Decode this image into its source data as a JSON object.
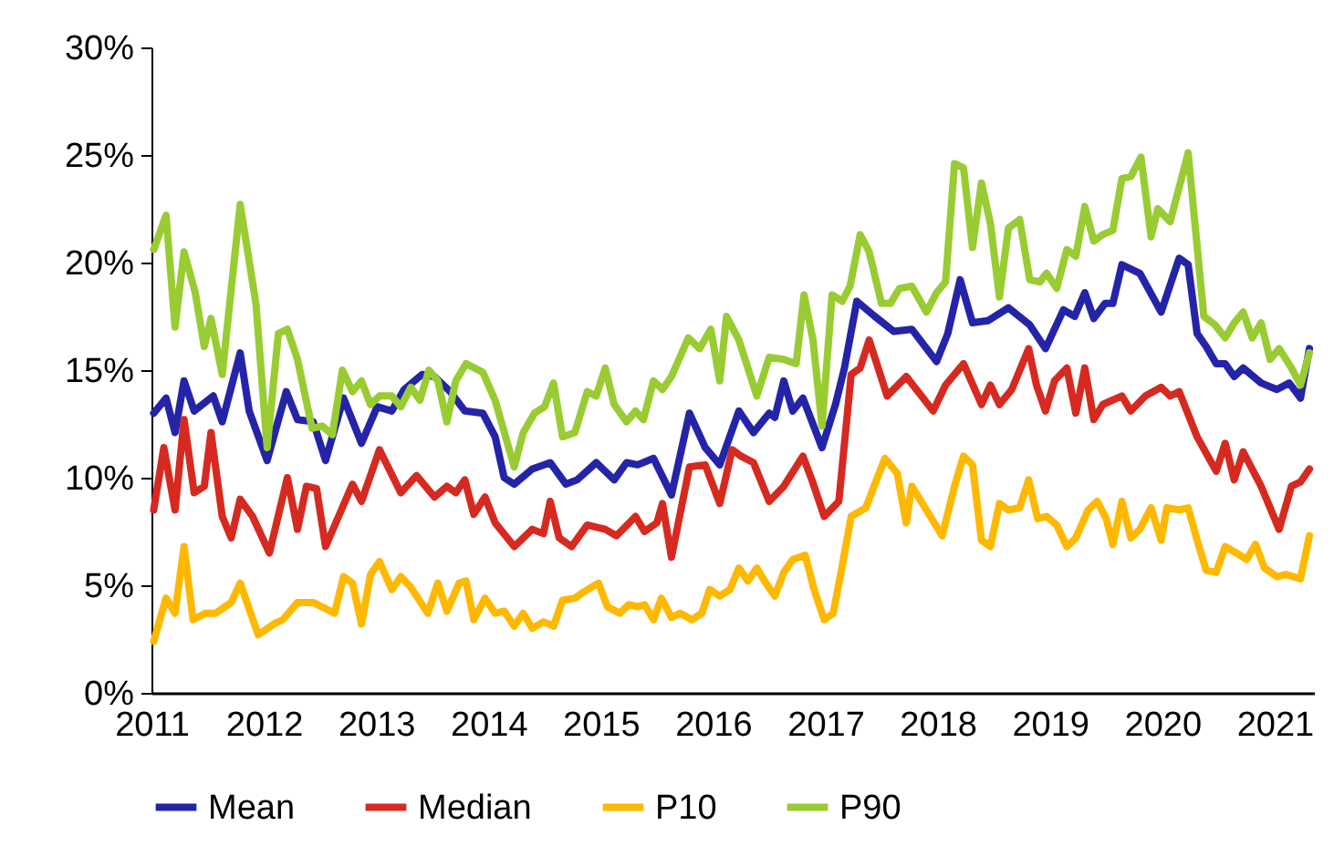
{
  "chart_data": {
    "type": "line",
    "xlim": [
      2011,
      2021.35
    ],
    "xticks": [
      2011,
      2012,
      2013,
      2014,
      2015,
      2016,
      2017,
      2018,
      2019,
      2020,
      2021
    ],
    "ylim": [
      0,
      30
    ],
    "yticks": [
      {
        "value": 0,
        "label": "0%"
      },
      {
        "value": 5,
        "label": "5%"
      },
      {
        "value": 10,
        "label": "10%"
      },
      {
        "value": 15,
        "label": "15%"
      },
      {
        "value": 20,
        "label": "20%"
      },
      {
        "value": 25,
        "label": "25%"
      },
      {
        "value": 30,
        "label": "30%"
      }
    ],
    "legend": "bottom",
    "grid": false,
    "series": [
      {
        "name": "Mean",
        "color": "#2424a8",
        "x": [
          2011.02,
          2011.13,
          2011.21,
          2011.29,
          2011.38,
          2011.55,
          2011.63,
          2011.79,
          2011.87,
          2012.03,
          2012.2,
          2012.3,
          2012.44,
          2012.55,
          2012.71,
          2012.87,
          2013.01,
          2013.14,
          2013.25,
          2013.41,
          2013.52,
          2013.66,
          2013.79,
          2013.95,
          2014.06,
          2014.14,
          2014.23,
          2014.39,
          2014.55,
          2014.69,
          2014.79,
          2014.96,
          2015.12,
          2015.23,
          2015.33,
          2015.47,
          2015.63,
          2015.79,
          2015.93,
          2016.06,
          2016.23,
          2016.36,
          2016.5,
          2016.55,
          2016.63,
          2016.71,
          2016.8,
          2016.97,
          2017.09,
          2017.17,
          2017.28,
          2017.44,
          2017.61,
          2017.77,
          2017.99,
          2018.09,
          2018.2,
          2018.31,
          2018.45,
          2018.63,
          2018.82,
          2018.96,
          2019.12,
          2019.22,
          2019.31,
          2019.39,
          2019.49,
          2019.56,
          2019.64,
          2019.8,
          2019.99,
          2020.15,
          2020.23,
          2020.31,
          2020.39,
          2020.48,
          2020.56,
          2020.64,
          2020.72,
          2020.88,
          2021.02,
          2021.13,
          2021.23,
          2021.31
        ],
        "values": [
          13.0,
          13.7,
          12.1,
          14.5,
          13.1,
          13.8,
          12.6,
          15.8,
          13.1,
          10.8,
          14.0,
          12.7,
          12.6,
          10.8,
          13.7,
          11.6,
          13.3,
          13.1,
          14.1,
          14.8,
          14.7,
          14.0,
          13.1,
          13.0,
          11.9,
          10.0,
          9.7,
          10.4,
          10.7,
          9.7,
          9.9,
          10.7,
          9.9,
          10.7,
          10.6,
          10.9,
          9.2,
          13.0,
          11.4,
          10.6,
          13.1,
          12.1,
          13.0,
          12.8,
          14.5,
          13.1,
          13.7,
          11.4,
          13.4,
          15.1,
          18.2,
          17.5,
          16.8,
          16.9,
          15.4,
          16.7,
          19.2,
          17.2,
          17.3,
          17.9,
          17.1,
          16.0,
          17.8,
          17.5,
          18.6,
          17.4,
          18.1,
          18.1,
          19.9,
          19.5,
          17.7,
          20.2,
          19.9,
          16.7,
          16.1,
          15.3,
          15.3,
          14.7,
          15.1,
          14.4,
          14.1,
          14.4,
          13.7,
          16.0
        ]
      },
      {
        "name": "Median",
        "color": "#d62a20",
        "x": [
          2011.02,
          2011.11,
          2011.21,
          2011.29,
          2011.38,
          2011.47,
          2011.53,
          2011.63,
          2011.71,
          2011.79,
          2011.9,
          2012.05,
          2012.21,
          2012.3,
          2012.38,
          2012.47,
          2012.55,
          2012.79,
          2012.87,
          2013.03,
          2013.22,
          2013.36,
          2013.52,
          2013.63,
          2013.71,
          2013.79,
          2013.87,
          2013.97,
          2014.06,
          2014.23,
          2014.39,
          2014.49,
          2014.55,
          2014.63,
          2014.74,
          2014.88,
          2015.04,
          2015.14,
          2015.31,
          2015.39,
          2015.5,
          2015.55,
          2015.63,
          2015.79,
          2015.93,
          2016.06,
          2016.17,
          2016.25,
          2016.36,
          2016.5,
          2016.63,
          2016.8,
          2016.88,
          2016.99,
          2017.12,
          2017.23,
          2017.31,
          2017.39,
          2017.55,
          2017.72,
          2017.96,
          2018.07,
          2018.23,
          2018.39,
          2018.47,
          2018.55,
          2018.66,
          2018.81,
          2018.88,
          2018.96,
          2019.04,
          2019.15,
          2019.23,
          2019.31,
          2019.39,
          2019.47,
          2019.64,
          2019.72,
          2019.85,
          2019.99,
          2020.07,
          2020.15,
          2020.31,
          2020.48,
          2020.56,
          2020.64,
          2020.72,
          2020.88,
          2021.04,
          2021.15,
          2021.23,
          2021.31
        ],
        "values": [
          8.5,
          11.4,
          8.5,
          12.7,
          9.3,
          9.6,
          12.1,
          8.2,
          7.2,
          9.0,
          8.2,
          6.5,
          10.0,
          7.6,
          9.6,
          9.5,
          6.8,
          9.7,
          8.9,
          11.3,
          9.3,
          10.1,
          9.1,
          9.6,
          9.3,
          9.9,
          8.3,
          9.1,
          7.9,
          6.8,
          7.6,
          7.4,
          8.9,
          7.2,
          6.8,
          7.8,
          7.6,
          7.3,
          8.2,
          7.5,
          7.9,
          8.8,
          6.3,
          10.5,
          10.6,
          8.8,
          11.3,
          11.0,
          10.7,
          8.9,
          9.6,
          11.0,
          9.9,
          8.2,
          8.9,
          14.8,
          15.1,
          16.4,
          13.8,
          14.7,
          13.1,
          14.3,
          15.3,
          13.4,
          14.3,
          13.4,
          14.1,
          16.0,
          14.3,
          13.1,
          14.5,
          15.1,
          13.0,
          15.1,
          12.7,
          13.4,
          13.8,
          13.1,
          13.8,
          14.2,
          13.8,
          14.0,
          11.9,
          10.3,
          11.6,
          9.9,
          11.2,
          9.6,
          7.6,
          9.6,
          9.8,
          10.4
        ]
      },
      {
        "name": "P10",
        "color": "#ffb800",
        "x": [
          2011.02,
          2011.13,
          2011.21,
          2011.29,
          2011.37,
          2011.48,
          2011.57,
          2011.71,
          2011.79,
          2011.95,
          2012.09,
          2012.17,
          2012.3,
          2012.44,
          2012.63,
          2012.71,
          2012.79,
          2012.87,
          2012.95,
          2013.03,
          2013.14,
          2013.22,
          2013.31,
          2013.46,
          2013.55,
          2013.63,
          2013.74,
          2013.8,
          2013.87,
          2013.97,
          2014.06,
          2014.14,
          2014.23,
          2014.31,
          2014.39,
          2014.49,
          2014.58,
          2014.66,
          2014.77,
          2014.85,
          2014.98,
          2015.06,
          2015.17,
          2015.25,
          2015.33,
          2015.39,
          2015.47,
          2015.54,
          2015.63,
          2015.71,
          2015.81,
          2015.9,
          2015.97,
          2016.06,
          2016.15,
          2016.23,
          2016.31,
          2016.39,
          2016.47,
          2016.55,
          2016.63,
          2016.71,
          2016.82,
          2016.9,
          2016.99,
          2017.07,
          2017.15,
          2017.23,
          2017.36,
          2017.53,
          2017.64,
          2017.72,
          2017.77,
          2018.04,
          2018.15,
          2018.23,
          2018.31,
          2018.39,
          2018.47,
          2018.55,
          2018.63,
          2018.73,
          2018.81,
          2018.89,
          2018.97,
          2019.06,
          2019.15,
          2019.23,
          2019.34,
          2019.42,
          2019.5,
          2019.56,
          2019.64,
          2019.72,
          2019.8,
          2019.9,
          2019.99,
          2020.04,
          2020.15,
          2020.23,
          2020.31,
          2020.39,
          2020.48,
          2020.56,
          2020.66,
          2020.75,
          2020.83,
          2020.91,
          2021.02,
          2021.1,
          2021.23,
          2021.31
        ],
        "values": [
          2.4,
          4.4,
          3.7,
          6.8,
          3.4,
          3.7,
          3.7,
          4.2,
          5.1,
          2.7,
          3.2,
          3.4,
          4.2,
          4.2,
          3.7,
          5.4,
          5.1,
          3.2,
          5.5,
          6.1,
          4.8,
          5.4,
          4.9,
          3.7,
          5.1,
          3.8,
          5.1,
          5.2,
          3.4,
          4.4,
          3.7,
          3.8,
          3.1,
          3.7,
          3.0,
          3.3,
          3.1,
          4.3,
          4.4,
          4.7,
          5.1,
          4.0,
          3.7,
          4.1,
          4.0,
          4.1,
          3.4,
          4.4,
          3.5,
          3.7,
          3.4,
          3.7,
          4.8,
          4.5,
          4.8,
          5.8,
          5.2,
          5.8,
          5.1,
          4.5,
          5.6,
          6.2,
          6.4,
          4.8,
          3.4,
          3.7,
          5.9,
          8.2,
          8.6,
          10.9,
          10.2,
          7.9,
          9.6,
          7.3,
          9.6,
          11.0,
          10.6,
          7.1,
          6.8,
          8.8,
          8.5,
          8.6,
          9.9,
          8.1,
          8.2,
          7.8,
          6.8,
          7.2,
          8.5,
          8.9,
          8.1,
          6.9,
          8.9,
          7.2,
          7.6,
          8.6,
          7.1,
          8.6,
          8.5,
          8.6,
          7.1,
          5.7,
          5.6,
          6.8,
          6.5,
          6.2,
          6.9,
          5.8,
          5.4,
          5.5,
          5.3,
          7.3
        ]
      },
      {
        "name": "P90",
        "color": "#99cc33",
        "x": [
          2011.02,
          2011.13,
          2011.21,
          2011.29,
          2011.39,
          2011.47,
          2011.53,
          2011.63,
          2011.79,
          2011.93,
          2012.03,
          2012.13,
          2012.21,
          2012.3,
          2012.43,
          2012.52,
          2012.61,
          2012.7,
          2012.79,
          2012.87,
          2012.95,
          2013.03,
          2013.14,
          2013.22,
          2013.31,
          2013.39,
          2013.47,
          2013.55,
          2013.63,
          2013.71,
          2013.8,
          2013.95,
          2014.06,
          2014.23,
          2014.31,
          2014.41,
          2014.5,
          2014.58,
          2014.66,
          2014.77,
          2014.88,
          2014.96,
          2015.04,
          2015.12,
          2015.23,
          2015.31,
          2015.38,
          2015.47,
          2015.55,
          2015.63,
          2015.78,
          2015.88,
          2015.98,
          2016.06,
          2016.12,
          2016.23,
          2016.39,
          2016.5,
          2016.63,
          2016.74,
          2016.81,
          2016.89,
          2016.97,
          2017.06,
          2017.15,
          2017.22,
          2017.31,
          2017.39,
          2017.5,
          2017.58,
          2017.66,
          2017.77,
          2017.9,
          2017.99,
          2018.07,
          2018.15,
          2018.23,
          2018.31,
          2018.39,
          2018.47,
          2018.55,
          2018.63,
          2018.73,
          2018.82,
          2018.91,
          2018.97,
          2019.06,
          2019.15,
          2019.23,
          2019.31,
          2019.39,
          2019.47,
          2019.56,
          2019.64,
          2019.72,
          2019.81,
          2019.9,
          2019.96,
          2020.07,
          2020.23,
          2020.37,
          2020.47,
          2020.56,
          2020.64,
          2020.72,
          2020.8,
          2020.88,
          2020.96,
          2021.04,
          2021.15,
          2021.23,
          2021.31
        ],
        "values": [
          20.6,
          22.2,
          17.0,
          20.5,
          18.6,
          16.1,
          17.4,
          14.8,
          22.7,
          18.1,
          11.4,
          16.7,
          16.9,
          15.5,
          12.3,
          12.4,
          12.0,
          15.0,
          14.0,
          14.5,
          13.4,
          13.8,
          13.8,
          13.3,
          14.2,
          13.6,
          15.0,
          14.5,
          12.6,
          14.5,
          15.3,
          14.9,
          13.6,
          10.5,
          12.1,
          13.0,
          13.3,
          14.4,
          11.9,
          12.1,
          14.0,
          13.8,
          15.1,
          13.4,
          12.6,
          13.1,
          12.7,
          14.5,
          14.1,
          14.7,
          16.5,
          16.0,
          16.9,
          14.5,
          17.5,
          16.4,
          13.8,
          15.6,
          15.5,
          15.3,
          18.5,
          16.4,
          12.4,
          18.5,
          18.2,
          18.9,
          21.3,
          20.5,
          18.1,
          18.1,
          18.8,
          18.9,
          17.7,
          18.6,
          19.1,
          24.6,
          24.4,
          20.7,
          23.7,
          21.8,
          18.4,
          21.6,
          22.0,
          19.2,
          19.1,
          19.5,
          18.8,
          20.6,
          20.3,
          22.6,
          21.0,
          21.3,
          21.5,
          23.9,
          24.0,
          24.9,
          21.2,
          22.5,
          21.9,
          25.1,
          17.5,
          17.1,
          16.5,
          17.2,
          17.7,
          16.5,
          17.2,
          15.5,
          16.0,
          15.1,
          14.3,
          15.8
        ]
      }
    ]
  }
}
